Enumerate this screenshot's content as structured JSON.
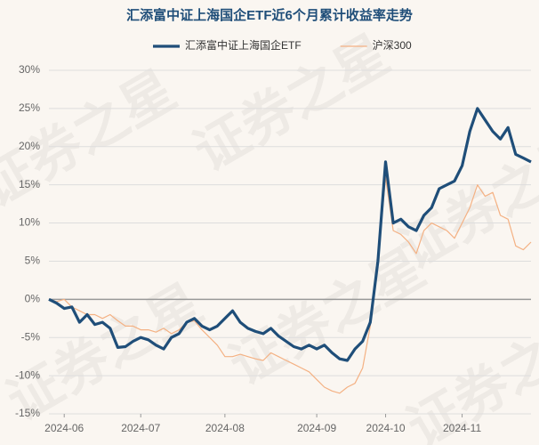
{
  "chart_data": {
    "type": "line",
    "title": "汇添富中证上海国企ETF近6个月累计收益率走势",
    "watermark": "证券之星",
    "categories": [
      null,
      null,
      "2024-06",
      null,
      null,
      null,
      null,
      null,
      null,
      null,
      null,
      null,
      "2024-07",
      null,
      null,
      null,
      null,
      null,
      null,
      null,
      null,
      null,
      null,
      "2024-08",
      null,
      null,
      null,
      null,
      null,
      null,
      null,
      null,
      null,
      null,
      null,
      "2024-09",
      null,
      null,
      null,
      null,
      null,
      null,
      null,
      null,
      "2024-10",
      null,
      null,
      null,
      null,
      null,
      null,
      null,
      null,
      null,
      "2024-11",
      null,
      null,
      null,
      null,
      null,
      null,
      null,
      null,
      null
    ],
    "series": [
      {
        "name": "汇添富中证上海国企ETF",
        "color": "#1f4e79",
        "width": 3.2,
        "values": [
          0,
          -0.5,
          -1.2,
          -1.0,
          -3.0,
          -2.0,
          -3.3,
          -3.0,
          -3.8,
          -6.3,
          -6.2,
          -5.5,
          -5.0,
          -5.3,
          -6.0,
          -6.5,
          -5.0,
          -4.5,
          -3.0,
          -2.5,
          -3.5,
          -4.0,
          -3.5,
          -2.5,
          -1.5,
          -3.0,
          -3.8,
          -4.2,
          -4.5,
          -3.8,
          -4.8,
          -5.5,
          -6.2,
          -6.5,
          -6.0,
          -6.5,
          -6.0,
          -7.0,
          -7.8,
          -8.0,
          -6.5,
          -5.5,
          -3.0,
          5.0,
          18.0,
          10.0,
          10.5,
          9.5,
          9.0,
          11.0,
          12.0,
          14.5,
          15.0,
          15.5,
          17.5,
          22.0,
          25.0,
          23.5,
          22.0,
          21.0,
          22.5,
          19.0,
          18.5,
          18.0
        ]
      },
      {
        "name": "沪深300",
        "color": "#f4b183",
        "width": 1.2,
        "values": [
          0,
          -0.3,
          0,
          -1.0,
          -1.5,
          -2.0,
          -2.0,
          -2.5,
          -2.0,
          -2.8,
          -3.5,
          -3.5,
          -4.0,
          -4.0,
          -4.3,
          -3.8,
          -4.5,
          -4.0,
          -3.0,
          -2.8,
          -4.0,
          -5.0,
          -6.0,
          -7.5,
          -7.5,
          -7.2,
          -7.5,
          -7.8,
          -8.0,
          -7.0,
          -7.5,
          -8.0,
          -8.5,
          -9.0,
          -9.5,
          -10.5,
          -11.5,
          -12.0,
          -12.3,
          -11.5,
          -11.0,
          -9.0,
          -3.5,
          5.0,
          16.0,
          9.0,
          8.5,
          7.5,
          6.0,
          9.0,
          10.0,
          9.5,
          9.0,
          8.0,
          10.0,
          12.0,
          15.0,
          13.5,
          14.0,
          11.0,
          10.5,
          7.0,
          6.5,
          7.5
        ]
      }
    ],
    "ylim": [
      -15,
      30
    ],
    "yticks": [
      {
        "value": -15,
        "label": "-15%"
      },
      {
        "value": -10,
        "label": "-10%"
      },
      {
        "value": -5,
        "label": "-5%"
      },
      {
        "value": 0,
        "label": "0%"
      },
      {
        "value": 5,
        "label": "5%"
      },
      {
        "value": 10,
        "label": "10%"
      },
      {
        "value": 15,
        "label": "15%"
      },
      {
        "value": 20,
        "label": "20%"
      },
      {
        "value": 25,
        "label": "25%"
      },
      {
        "value": 30,
        "label": "30%"
      }
    ],
    "grid": true
  }
}
